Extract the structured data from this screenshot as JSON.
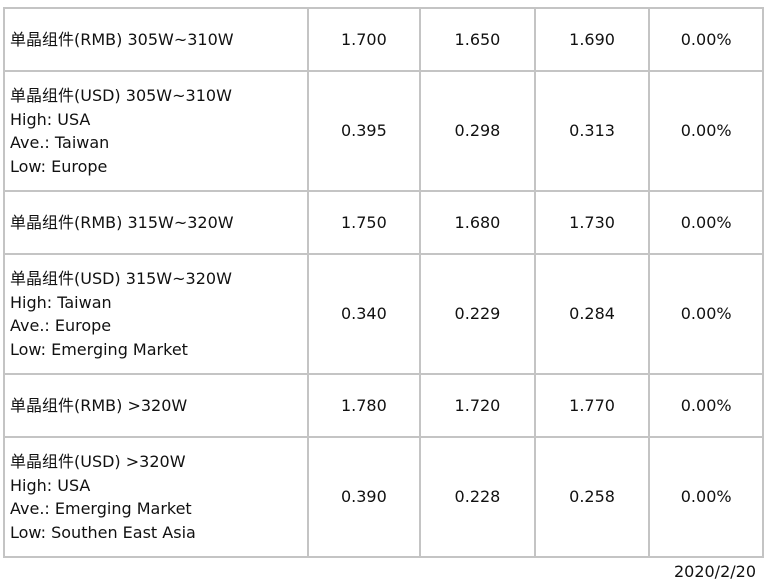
{
  "rows": [
    {
      "lines": [
        "单晶组件(RMB) 305W~310W"
      ],
      "values": [
        "1.700",
        "1.650",
        "1.690",
        "0.00%"
      ]
    },
    {
      "lines": [
        "单晶组件(USD) 305W~310W",
        "High: USA",
        "Ave.: Taiwan",
        "Low: Europe"
      ],
      "values": [
        "0.395",
        "0.298",
        "0.313",
        "0.00%"
      ]
    },
    {
      "lines": [
        "单晶组件(RMB) 315W~320W"
      ],
      "values": [
        "1.750",
        "1.680",
        "1.730",
        "0.00%"
      ]
    },
    {
      "lines": [
        "单晶组件(USD) 315W~320W",
        "High: Taiwan",
        "Ave.: Europe",
        "Low: Emerging Market"
      ],
      "values": [
        "0.340",
        "0.229",
        "0.284",
        "0.00%"
      ]
    },
    {
      "lines": [
        "单晶组件(RMB) >320W"
      ],
      "values": [
        "1.780",
        "1.720",
        "1.770",
        "0.00%"
      ]
    },
    {
      "lines": [
        "单晶组件(USD) >320W",
        "High: USA",
        "Ave.: Emerging Market",
        "Low: Southen East Asia"
      ],
      "values": [
        "0.390",
        "0.228",
        "0.258",
        "0.00%"
      ]
    }
  ],
  "date": "2020/2/20"
}
